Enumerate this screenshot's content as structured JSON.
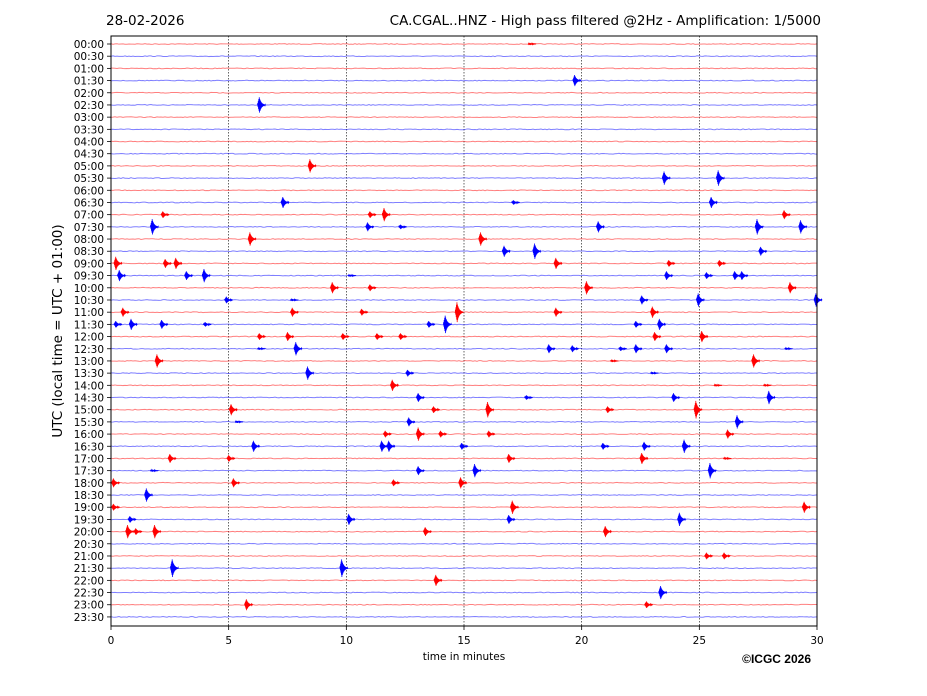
{
  "header": {
    "date": "28-02-2026",
    "title": "CA.CGAL..HNZ - High pass filtered @2Hz - Amplification: 1/5000"
  },
  "footer": {
    "copyright": "©ICGC 2026"
  },
  "chart_data": {
    "type": "line",
    "title": "CA.CGAL..HNZ - High pass filtered @2Hz - Amplification: 1/5000",
    "xlabel": "time in minutes",
    "ylabel": "UTC (local time = UTC + 01:00)",
    "xlim": [
      0,
      30
    ],
    "xticks": [
      "0",
      "5",
      "10",
      "15",
      "20",
      "25",
      "30"
    ],
    "grid": "vertical dotted at 5-minute ticks",
    "colors": {
      "even_rows": "#ff0000",
      "odd_rows": "#0000ff"
    },
    "rows": [
      {
        "label": "00:00",
        "events": [
          [
            17.8,
            1
          ]
        ]
      },
      {
        "label": "00:30",
        "events": []
      },
      {
        "label": "01:00",
        "events": []
      },
      {
        "label": "01:30",
        "events": [
          [
            19.7,
            5
          ]
        ]
      },
      {
        "label": "02:00",
        "events": []
      },
      {
        "label": "02:30",
        "events": [
          [
            6.3,
            7
          ]
        ]
      },
      {
        "label": "03:00",
        "events": []
      },
      {
        "label": "03:30",
        "events": []
      },
      {
        "label": "04:00",
        "events": []
      },
      {
        "label": "04:30",
        "events": []
      },
      {
        "label": "05:00",
        "events": [
          [
            8.45,
            6
          ]
        ]
      },
      {
        "label": "05:30",
        "events": [
          [
            23.5,
            6
          ],
          [
            25.8,
            7
          ]
        ]
      },
      {
        "label": "06:00",
        "events": []
      },
      {
        "label": "06:30",
        "events": [
          [
            7.3,
            5
          ],
          [
            17.1,
            2
          ],
          [
            25.5,
            5
          ]
        ]
      },
      {
        "label": "07:00",
        "events": [
          [
            2.2,
            3
          ],
          [
            11.0,
            3
          ],
          [
            11.6,
            6
          ],
          [
            28.6,
            4
          ]
        ]
      },
      {
        "label": "07:30",
        "events": [
          [
            1.75,
            7
          ],
          [
            10.9,
            4
          ],
          [
            12.3,
            2
          ],
          [
            20.7,
            5
          ],
          [
            27.45,
            7
          ],
          [
            29.3,
            6
          ]
        ]
      },
      {
        "label": "08:00",
        "events": [
          [
            5.9,
            6
          ],
          [
            15.7,
            6
          ]
        ]
      },
      {
        "label": "08:30",
        "events": [
          [
            16.7,
            5
          ],
          [
            18.0,
            7
          ],
          [
            27.6,
            4
          ]
        ]
      },
      {
        "label": "09:00",
        "events": [
          [
            0.2,
            6
          ],
          [
            2.3,
            4
          ],
          [
            2.75,
            5
          ],
          [
            18.9,
            5
          ],
          [
            23.7,
            3
          ],
          [
            25.85,
            3
          ]
        ]
      },
      {
        "label": "09:30",
        "events": [
          [
            0.35,
            5
          ],
          [
            3.2,
            4
          ],
          [
            3.95,
            6
          ],
          [
            10.15,
            1
          ],
          [
            23.6,
            4
          ],
          [
            25.3,
            3
          ],
          [
            26.5,
            4
          ],
          [
            26.8,
            4
          ]
        ]
      },
      {
        "label": "10:00",
        "events": [
          [
            9.4,
            5
          ],
          [
            11.0,
            3
          ],
          [
            20.2,
            6
          ],
          [
            28.85,
            5
          ]
        ]
      },
      {
        "label": "10:30",
        "events": [
          [
            4.9,
            3
          ],
          [
            7.7,
            1
          ],
          [
            22.55,
            4
          ],
          [
            24.95,
            6
          ],
          [
            29.95,
            6
          ]
        ]
      },
      {
        "label": "11:00",
        "events": [
          [
            0.5,
            4
          ],
          [
            7.7,
            4
          ],
          [
            10.65,
            3
          ],
          [
            14.7,
            9
          ],
          [
            18.9,
            4
          ],
          [
            23.0,
            5
          ]
        ]
      },
      {
        "label": "11:30",
        "events": [
          [
            0.2,
            3
          ],
          [
            0.85,
            5
          ],
          [
            2.15,
            4
          ],
          [
            4.0,
            2
          ],
          [
            13.5,
            3
          ],
          [
            14.2,
            8
          ],
          [
            22.3,
            3
          ],
          [
            23.3,
            5
          ]
        ]
      },
      {
        "label": "12:00",
        "events": [
          [
            6.3,
            3
          ],
          [
            7.5,
            4
          ],
          [
            9.85,
            3
          ],
          [
            11.3,
            3
          ],
          [
            12.3,
            3
          ],
          [
            23.1,
            4
          ],
          [
            25.1,
            5
          ]
        ]
      },
      {
        "label": "12:30",
        "events": [
          [
            6.3,
            1
          ],
          [
            7.85,
            6
          ],
          [
            18.6,
            4
          ],
          [
            19.6,
            3
          ],
          [
            21.65,
            2
          ],
          [
            22.3,
            4
          ],
          [
            23.6,
            4
          ],
          [
            28.7,
            1
          ]
        ]
      },
      {
        "label": "13:00",
        "events": [
          [
            1.95,
            6
          ],
          [
            21.3,
            1
          ],
          [
            27.3,
            6
          ]
        ]
      },
      {
        "label": "13:30",
        "events": [
          [
            8.35,
            6
          ],
          [
            12.6,
            3
          ],
          [
            23.0,
            1
          ]
        ]
      },
      {
        "label": "14:00",
        "events": [
          [
            11.95,
            5
          ],
          [
            25.7,
            1
          ],
          [
            27.8,
            1
          ]
        ]
      },
      {
        "label": "14:30",
        "events": [
          [
            13.05,
            4
          ],
          [
            17.65,
            2
          ],
          [
            23.9,
            4
          ],
          [
            27.95,
            6
          ]
        ]
      },
      {
        "label": "15:00",
        "events": [
          [
            5.1,
            5
          ],
          [
            13.7,
            3
          ],
          [
            16.0,
            7
          ],
          [
            21.1,
            3
          ],
          [
            24.85,
            8
          ]
        ]
      },
      {
        "label": "15:30",
        "events": [
          [
            5.35,
            1
          ],
          [
            12.65,
            4
          ],
          [
            26.6,
            6
          ]
        ]
      },
      {
        "label": "16:00",
        "events": [
          [
            11.65,
            3
          ],
          [
            13.05,
            6
          ],
          [
            14.0,
            3
          ],
          [
            16.05,
            3
          ],
          [
            26.2,
            4
          ]
        ]
      },
      {
        "label": "16:30",
        "events": [
          [
            6.05,
            5
          ],
          [
            11.5,
            5
          ],
          [
            11.8,
            5
          ],
          [
            14.9,
            3
          ],
          [
            20.9,
            3
          ],
          [
            22.65,
            4
          ],
          [
            24.35,
            6
          ]
        ]
      },
      {
        "label": "17:00",
        "events": [
          [
            2.5,
            4
          ],
          [
            5.0,
            3
          ],
          [
            16.9,
            4
          ],
          [
            22.55,
            5
          ],
          [
            26.1,
            1
          ]
        ]
      },
      {
        "label": "17:30",
        "events": [
          [
            1.75,
            1
          ],
          [
            13.05,
            4
          ],
          [
            15.45,
            6
          ],
          [
            25.45,
            7
          ]
        ]
      },
      {
        "label": "18:00",
        "events": [
          [
            0.1,
            4
          ],
          [
            5.2,
            4
          ],
          [
            12.0,
            3
          ],
          [
            14.85,
            5
          ]
        ]
      },
      {
        "label": "18:30",
        "events": [
          [
            1.5,
            6
          ]
        ]
      },
      {
        "label": "19:00",
        "events": [
          [
            0.1,
            3
          ],
          [
            17.05,
            6
          ],
          [
            29.45,
            5
          ]
        ]
      },
      {
        "label": "19:30",
        "events": [
          [
            0.8,
            3
          ],
          [
            10.1,
            5
          ],
          [
            16.9,
            4
          ],
          [
            24.15,
            6
          ]
        ]
      },
      {
        "label": "20:00",
        "events": [
          [
            0.7,
            6
          ],
          [
            1.05,
            3
          ],
          [
            1.85,
            6
          ],
          [
            13.35,
            4
          ],
          [
            21.0,
            5
          ]
        ]
      },
      {
        "label": "20:30",
        "events": []
      },
      {
        "label": "21:00",
        "events": [
          [
            25.3,
            3
          ],
          [
            26.05,
            3
          ]
        ]
      },
      {
        "label": "21:30",
        "events": [
          [
            2.6,
            8
          ],
          [
            9.8,
            8
          ]
        ]
      },
      {
        "label": "22:00",
        "events": [
          [
            13.8,
            5
          ]
        ]
      },
      {
        "label": "22:30",
        "events": [
          [
            23.35,
            6
          ]
        ]
      },
      {
        "label": "23:00",
        "events": [
          [
            5.75,
            5
          ],
          [
            22.75,
            3
          ]
        ]
      },
      {
        "label": "23:30",
        "events": []
      }
    ]
  }
}
